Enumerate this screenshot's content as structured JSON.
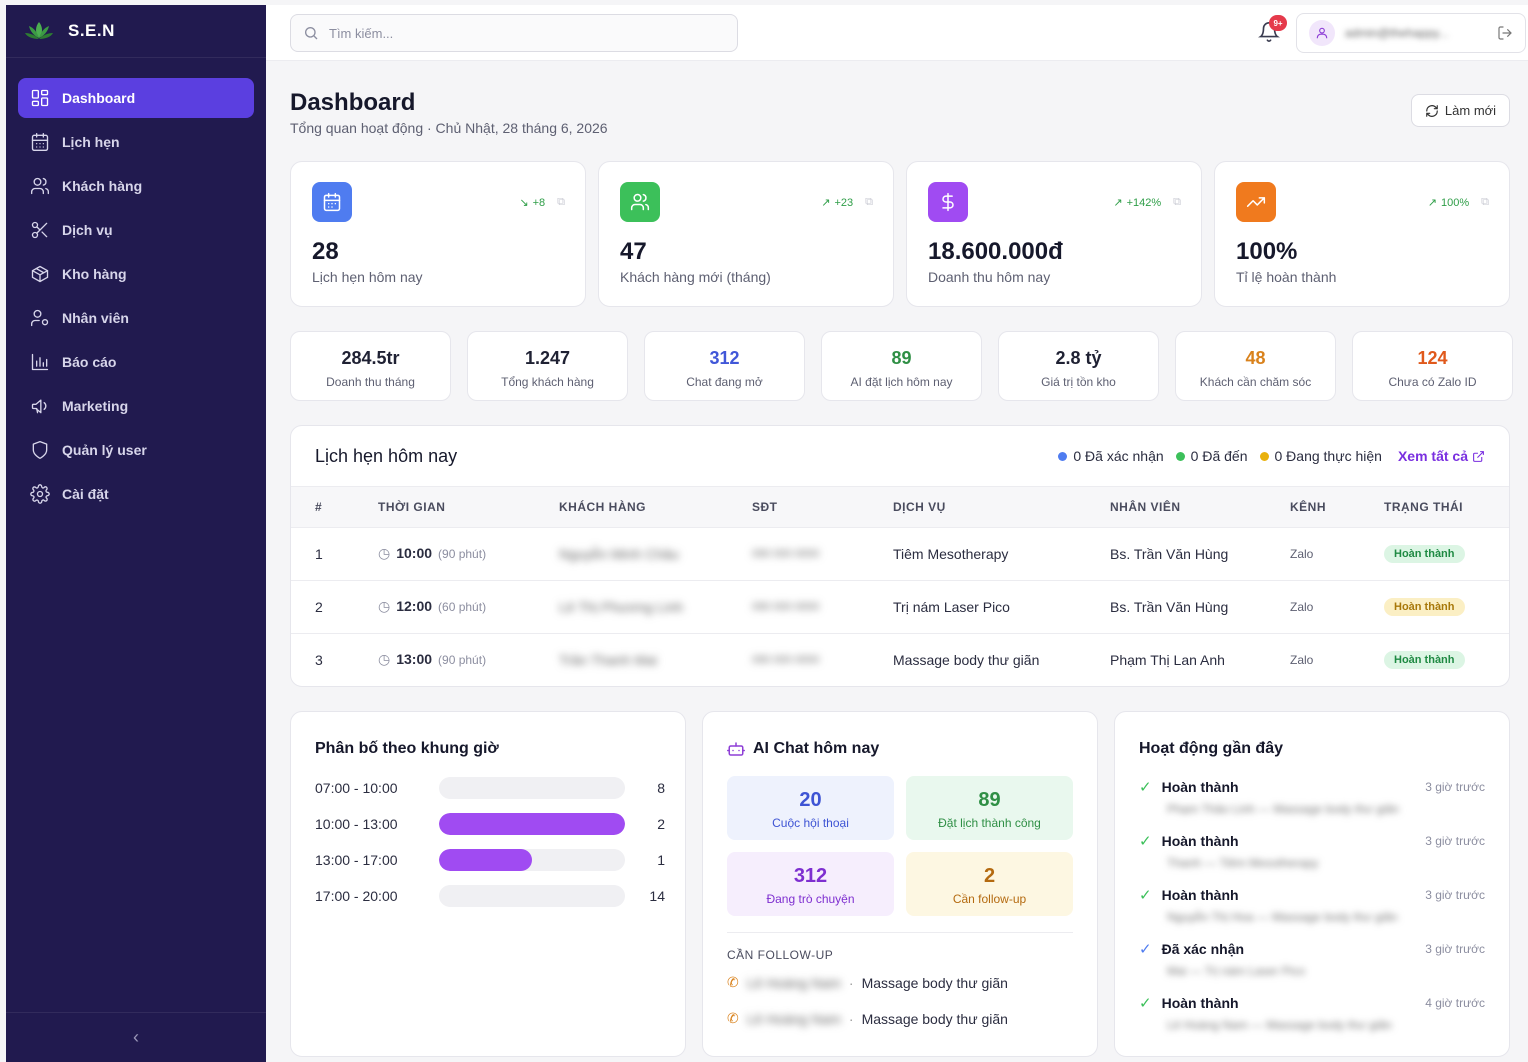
{
  "brand": {
    "name": "S.E.N"
  },
  "sidebar": {
    "items": [
      {
        "label": "Dashboard",
        "icon": "dashboard-icon",
        "active": true
      },
      {
        "label": "Lịch hẹn",
        "icon": "calendar-icon"
      },
      {
        "label": "Khách hàng",
        "icon": "users-icon"
      },
      {
        "label": "Dịch vụ",
        "icon": "scissors-icon"
      },
      {
        "label": "Kho hàng",
        "icon": "package-icon"
      },
      {
        "label": "Nhân viên",
        "icon": "staff-icon"
      },
      {
        "label": "Báo cáo",
        "icon": "bar-chart-icon"
      },
      {
        "label": "Marketing",
        "icon": "megaphone-icon"
      },
      {
        "label": "Quản lý user",
        "icon": "shield-icon"
      },
      {
        "label": "Cài đặt",
        "icon": "gear-icon"
      }
    ],
    "collapse_glyph": "‹"
  },
  "topbar": {
    "search_placeholder": "Tìm kiếm...",
    "notif_badge": "9+",
    "username": "admin@thehappy..."
  },
  "header": {
    "title": "Dashboard",
    "subtitle": "Tổng quan hoạt động · Chủ Nhật, 28 tháng 6, 2026",
    "refresh_label": "Làm mới"
  },
  "stats": [
    {
      "value": "28",
      "label": "Lịch hẹn hôm nay",
      "trend": "+8",
      "trend_arrow": "↘",
      "color": "#4f7cf0"
    },
    {
      "value": "47",
      "label": "Khách hàng mới (tháng)",
      "trend": "+23",
      "trend_arrow": "↗",
      "color": "#3cc05a"
    },
    {
      "value": "18.600.000đ",
      "label": "Doanh thu hôm nay",
      "trend": "+142%",
      "trend_arrow": "↗",
      "color": "#a04bf2"
    },
    {
      "value": "100%",
      "label": "Tỉ lệ hoàn thành",
      "trend": "100%",
      "trend_arrow": "↗",
      "color": "#f07a1e"
    }
  ],
  "minis": [
    {
      "value": "284.5tr",
      "label": "Doanh thu tháng",
      "color": "#16182b"
    },
    {
      "value": "1.247",
      "label": "Tổng khách hàng",
      "color": "#16182b"
    },
    {
      "value": "312",
      "label": "Chat đang mở",
      "color": "#4157d8"
    },
    {
      "value": "89",
      "label": "AI đặt lịch hôm nay",
      "color": "#2f8f45"
    },
    {
      "value": "2.8 tỷ",
      "label": "Giá trị tồn kho",
      "color": "#16182b"
    },
    {
      "value": "48",
      "label": "Khách cần chăm sóc",
      "color": "#d9821c"
    },
    {
      "value": "124",
      "label": "Chưa có Zalo ID",
      "color": "#e0591c"
    }
  ],
  "appointments": {
    "title": "Lịch hẹn hôm nay",
    "legend": [
      {
        "label": "0 Đã xác nhận",
        "color": "#4f7cf0"
      },
      {
        "label": "0 Đã đến",
        "color": "#3cc05a"
      },
      {
        "label": "0 Đang thực hiện",
        "color": "#e9b10d"
      }
    ],
    "view_all": "Xem tất cả",
    "columns": [
      "#",
      "THỜI GIAN",
      "KHÁCH HÀNG",
      "SĐT",
      "DỊCH VỤ",
      "NHÂN VIÊN",
      "KÊNH",
      "TRẠNG THÁI"
    ],
    "rows": [
      {
        "no": "1",
        "time": "10:00",
        "duration": "(90 phút)",
        "customer": "Nguyễn Minh Châu",
        "phone": "090 000 0000",
        "service": "Tiêm Mesotherapy",
        "staff": "Bs. Trần Văn Hùng",
        "channel": "Zalo",
        "status": "Hoàn thành",
        "status_bg": "#dcf5e4",
        "status_fg": "#1f8a43"
      },
      {
        "no": "2",
        "time": "12:00",
        "duration": "(60 phút)",
        "customer": "Lê Thị Phương Linh",
        "phone": "090 000 0000",
        "service": "Trị nám Laser Pico",
        "staff": "Bs. Trần Văn Hùng",
        "channel": "Zalo",
        "status": "Hoàn thành",
        "status_bg": "#fbefc4",
        "status_fg": "#a8780a"
      },
      {
        "no": "3",
        "time": "13:00",
        "duration": "(90 phút)",
        "customer": "Trần Thanh Mai",
        "phone": "090 000 0000",
        "service": "Massage body thư giãn",
        "staff": "Phạm Thị Lan Anh",
        "channel": "Zalo",
        "status": "Hoàn thành",
        "status_bg": "#dcf5e4",
        "status_fg": "#1f8a43"
      }
    ]
  },
  "slots": {
    "title": "Phân bố theo khung giờ",
    "items": [
      {
        "label": "07:00 - 10:00",
        "count": "8",
        "fill": 0
      },
      {
        "label": "10:00 - 13:00",
        "count": "2",
        "fill": 1.0
      },
      {
        "label": "13:00 - 17:00",
        "count": "1",
        "fill": 0.5
      },
      {
        "label": "17:00 - 20:00",
        "count": "14",
        "fill": 0
      }
    ]
  },
  "ai_chat": {
    "title": "AI Chat hôm nay",
    "tiles": [
      {
        "value": "20",
        "label": "Cuộc hội thoại",
        "bg": "#eef2fd",
        "fg": "#3e54d4"
      },
      {
        "value": "89",
        "label": "Đặt lịch thành công",
        "bg": "#e9f8ee",
        "fg": "#2f8f45"
      },
      {
        "value": "312",
        "label": "Đang trò chuyện",
        "bg": "#f6eefd",
        "fg": "#7e2fd0"
      },
      {
        "value": "2",
        "label": "Cần follow-up",
        "bg": "#fdf7e2",
        "fg": "#b46a10"
      }
    ],
    "followup_title": "CẦN FOLLOW-UP",
    "followups": [
      {
        "name": "Lê Hoàng Nam",
        "service": "Massage body thư giãn"
      },
      {
        "name": "Lê Hoàng Nam",
        "service": "Massage body thư giãn"
      }
    ]
  },
  "activity": {
    "title": "Hoạt động gần đây",
    "items": [
      {
        "status": "Hoàn thành",
        "ago": "3 giờ trước",
        "detail": "Phạm Thảo Linh — Massage body thư giãn",
        "color": "#3cc05a"
      },
      {
        "status": "Hoàn thành",
        "ago": "3 giờ trước",
        "detail": "Thanh — Tiêm Mesotherapy",
        "color": "#3cc05a"
      },
      {
        "status": "Hoàn thành",
        "ago": "3 giờ trước",
        "detail": "Nguyễn Thị Hoa — Massage body thư giãn",
        "color": "#3cc05a"
      },
      {
        "status": "Đã xác nhận",
        "ago": "3 giờ trước",
        "detail": "Mai — Trị nám Laser Pico",
        "color": "#4f7cf0"
      },
      {
        "status": "Hoàn thành",
        "ago": "4 giờ trước",
        "detail": "Lê Hoàng Nam — Massage body thư giãn",
        "color": "#3cc05a"
      }
    ]
  }
}
